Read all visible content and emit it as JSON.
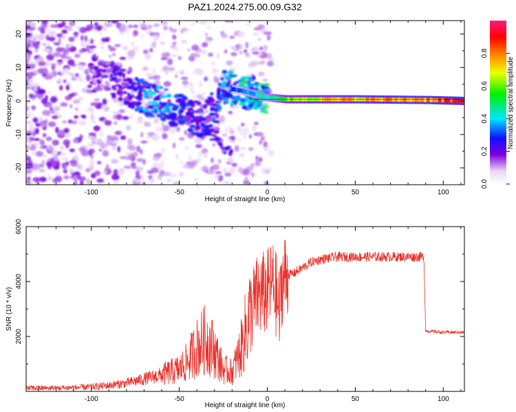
{
  "title": "PAZ1.2024.275.00.09.G32",
  "chart_data": [
    {
      "type": "heatmap",
      "xlabel": "Height of straight line (km)",
      "ylabel": "Frequency (Hz)",
      "xlim": [
        -137,
        112
      ],
      "ylim": [
        -25,
        24
      ],
      "xticks": [
        -100,
        -50,
        0,
        50,
        100
      ],
      "yticks": [
        -20,
        -10,
        0,
        10,
        20
      ],
      "grid": false,
      "colorbar": {
        "label": "Normalized spectral amplitude",
        "range": [
          0,
          1
        ],
        "ticks": [
          "0.0",
          "0.2",
          "0.4",
          "0.6",
          "0.8"
        ]
      },
      "ridge": {
        "description_points_x": [
          -95,
          -80,
          -65,
          -50,
          -35,
          -25,
          -15,
          0,
          10,
          20,
          50,
          90,
          112
        ],
        "frequency_hz": [
          8,
          4,
          0,
          -3,
          -6,
          4,
          3,
          1,
          0.5,
          0.5,
          0.5,
          0.3,
          0
        ],
        "amplitude": [
          0.15,
          0.2,
          0.3,
          0.25,
          0.2,
          0.3,
          0.35,
          0.45,
          0.6,
          0.7,
          0.75,
          0.8,
          0.95
        ]
      }
    },
    {
      "type": "line",
      "xlabel": "Height of straight line (km)",
      "ylabel": "SNR (10 * v/v)",
      "xlim": [
        -137,
        112
      ],
      "ylim": [
        0,
        6000
      ],
      "xticks": [
        -100,
        -50,
        0,
        50,
        100
      ],
      "yticks": [
        2000,
        4000,
        6000
      ],
      "grid": false,
      "color": "#e8302a",
      "series": [
        {
          "x": [
            -137,
            -120,
            -100,
            -90,
            -80,
            -70,
            -60,
            -50,
            -45,
            -40,
            -35,
            -30,
            -28,
            -25,
            -20,
            -15,
            -10,
            -5,
            0,
            3,
            5,
            7,
            8,
            10,
            15,
            20,
            25,
            30,
            35,
            40,
            50,
            60,
            70,
            80,
            89,
            90,
            91,
            100,
            112
          ],
          "y": [
            120,
            120,
            160,
            220,
            300,
            450,
            600,
            800,
            1100,
            1600,
            1900,
            1500,
            1200,
            800,
            700,
            1500,
            2800,
            3500,
            3600,
            4000,
            3500,
            2800,
            3900,
            4200,
            4300,
            4500,
            4700,
            4800,
            4850,
            4900,
            4900,
            4900,
            4900,
            4900,
            4900,
            2200,
            2200,
            2150,
            2150
          ]
        }
      ]
    }
  ]
}
